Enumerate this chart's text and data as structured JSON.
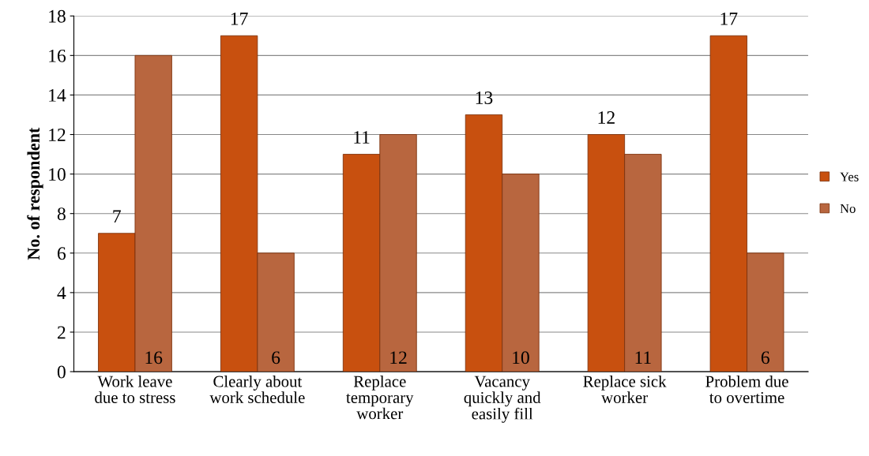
{
  "chart_data": {
    "type": "bar",
    "ylabel": "No. of respondent",
    "categories": [
      "Work leave due to stress",
      "Clearly about work schedule",
      "Replace temporary worker",
      "Vacancy quickly and easily fill",
      "Replace sick worker",
      "Problem due to overtime"
    ],
    "series": [
      {
        "name": "Yes",
        "color": "#c8500f",
        "values": [
          7,
          17,
          11,
          13,
          12,
          17
        ]
      },
      {
        "name": "No",
        "color": "#b8663f",
        "values": [
          16,
          6,
          12,
          10,
          11,
          6
        ]
      }
    ],
    "ylim": [
      0,
      18
    ],
    "yticks": [
      0,
      2,
      4,
      6,
      8,
      10,
      12,
      14,
      16,
      18
    ],
    "grid": "y",
    "legend": "right",
    "data_labels": true
  }
}
